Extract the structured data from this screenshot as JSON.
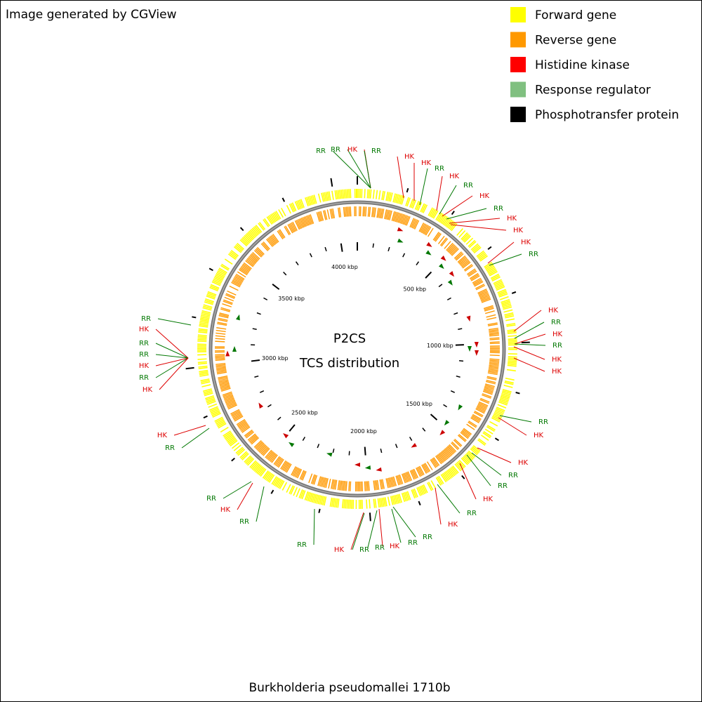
{
  "header": {
    "credit": "Image generated by CGView"
  },
  "legend": [
    {
      "label": "Forward gene",
      "color": "#ffff00"
    },
    {
      "label": "Reverse gene",
      "color": "#ff9900"
    },
    {
      "label": "Histidine kinase",
      "color": "#ff0000"
    },
    {
      "label": "Response regulator",
      "color": "#80c080"
    },
    {
      "label": "Phosphotransfer protein",
      "color": "#000000"
    }
  ],
  "center": {
    "line1": "P2CS",
    "line2": "TCS distribution"
  },
  "ruler": [
    "500 kbp",
    "1000 kbp",
    "1500 kbp",
    "2000 kbp",
    "2500 kbp",
    "3000 kbp",
    "3500 kbp",
    "4000 kbp"
  ],
  "feature_labels": [
    {
      "text": "RR",
      "color": "#007700"
    },
    {
      "text": "RR",
      "color": "#007700"
    },
    {
      "text": "HK",
      "color": "#dd0000"
    },
    {
      "text": "RR",
      "color": "#007700"
    },
    {
      "text": "HK",
      "color": "#dd0000"
    },
    {
      "text": "HK",
      "color": "#dd0000"
    },
    {
      "text": "RR",
      "color": "#007700"
    },
    {
      "text": "HK",
      "color": "#dd0000"
    },
    {
      "text": "RR",
      "color": "#007700"
    },
    {
      "text": "HK",
      "color": "#dd0000"
    },
    {
      "text": "RR",
      "color": "#007700"
    },
    {
      "text": "HK",
      "color": "#dd0000"
    },
    {
      "text": "HK",
      "color": "#dd0000"
    },
    {
      "text": "HK",
      "color": "#dd0000"
    },
    {
      "text": "RR",
      "color": "#007700"
    },
    {
      "text": "HK",
      "color": "#dd0000"
    },
    {
      "text": "RR",
      "color": "#007700"
    },
    {
      "text": "HK",
      "color": "#dd0000"
    },
    {
      "text": "RR",
      "color": "#007700"
    },
    {
      "text": "HK",
      "color": "#dd0000"
    },
    {
      "text": "HK",
      "color": "#dd0000"
    },
    {
      "text": "RR",
      "color": "#007700"
    },
    {
      "text": "HK",
      "color": "#dd0000"
    },
    {
      "text": "HK",
      "color": "#dd0000"
    },
    {
      "text": "RR",
      "color": "#007700"
    },
    {
      "text": "RR",
      "color": "#007700"
    },
    {
      "text": "HK",
      "color": "#dd0000"
    },
    {
      "text": "RR",
      "color": "#007700"
    },
    {
      "text": "HK",
      "color": "#dd0000"
    },
    {
      "text": "RR",
      "color": "#007700"
    },
    {
      "text": "RR",
      "color": "#007700"
    },
    {
      "text": "HK",
      "color": "#dd0000"
    },
    {
      "text": "RR",
      "color": "#007700"
    },
    {
      "text": "RR",
      "color": "#007700"
    },
    {
      "text": "HK",
      "color": "#dd0000"
    },
    {
      "text": "RR",
      "color": "#007700"
    },
    {
      "text": "RR",
      "color": "#007700"
    },
    {
      "text": "HK",
      "color": "#dd0000"
    },
    {
      "text": "RR",
      "color": "#007700"
    },
    {
      "text": "HK",
      "color": "#dd0000"
    },
    {
      "text": "RR",
      "color": "#007700"
    },
    {
      "text": "RR",
      "color": "#007700"
    },
    {
      "text": "HK",
      "color": "#dd0000"
    },
    {
      "text": "RR",
      "color": "#007700"
    },
    {
      "text": "RR",
      "color": "#007700"
    },
    {
      "text": "HK",
      "color": "#dd0000"
    },
    {
      "text": "RR",
      "color": "#007700"
    },
    {
      "text": "HK",
      "color": "#dd0000"
    }
  ],
  "footer": {
    "title": "Burkholderia pseudomallei 1710b"
  }
}
